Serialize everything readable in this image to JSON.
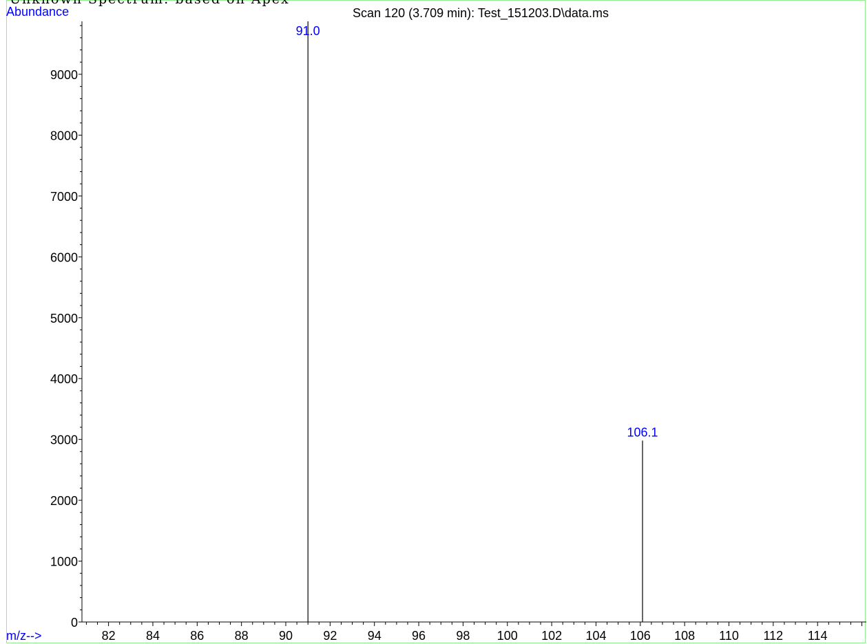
{
  "header": {
    "partial_text": "Unknown Spectrum: based on Apex"
  },
  "chart_data": {
    "type": "bar",
    "title": "Scan 120 (3.709 min): Test_151203.D\\data.ms",
    "ylabel": "Abundance",
    "xlabel": "m/z-->",
    "xlim": [
      80.8,
      116.2
    ],
    "ylim": [
      0,
      9870
    ],
    "x_ticks": [
      82,
      84,
      86,
      88,
      90,
      92,
      94,
      96,
      98,
      100,
      102,
      104,
      106,
      108,
      110,
      112,
      114
    ],
    "y_ticks": [
      0,
      1000,
      2000,
      3000,
      4000,
      5000,
      6000,
      7000,
      8000,
      9000
    ],
    "peaks": [
      {
        "mz": 91.0,
        "abundance": 9870,
        "label": "91.0"
      },
      {
        "mz": 106.1,
        "abundance": 2980,
        "label": "106.1"
      }
    ],
    "grid": false,
    "colors": {
      "frame": "#90ee90",
      "labels": "#0000ff",
      "axes": "#000000",
      "peaks": "#000000"
    }
  }
}
